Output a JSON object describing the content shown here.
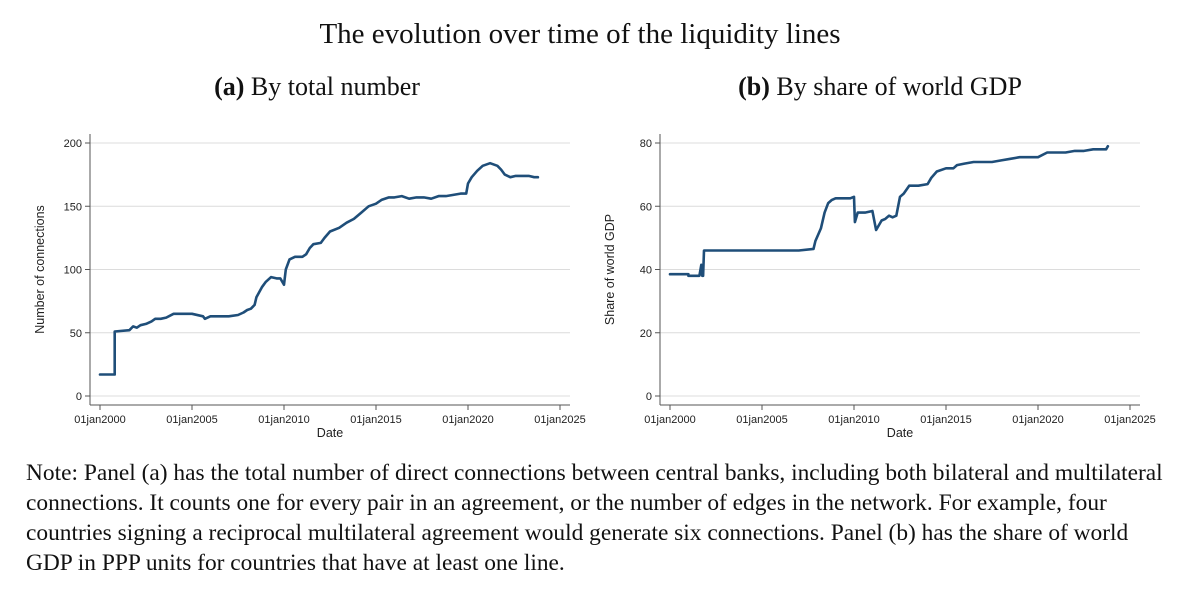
{
  "title": "The evolution over time of the liquidity lines",
  "panels": [
    {
      "tag": "(a)",
      "label": "By total number"
    },
    {
      "tag": "(b)",
      "label": "By share of world GDP"
    }
  ],
  "note": "Note: Panel (a) has the total number of direct connections between central banks, including both bilateral and multilateral connections. It counts one for every pair in an agreement, or the number of edges in the network. For example, four countries signing a reciprocal multilateral agreement would generate six connections. Panel (b) has the share of world GDP in PPP units for countries that have at least one line.",
  "colors": {
    "line": "#1f4e79",
    "axis": "#555555",
    "grid": "#dcdcdc"
  },
  "chart_data": [
    {
      "type": "line",
      "title": "By total number",
      "xlabel": "Date",
      "ylabel": "Number of connections",
      "xlim": [
        2000.0,
        2025.0
      ],
      "ylim": [
        0,
        200
      ],
      "xticks": [
        {
          "value": 2000,
          "label": "01jan2000"
        },
        {
          "value": 2005,
          "label": "01jan2005"
        },
        {
          "value": 2010,
          "label": "01jan2010"
        },
        {
          "value": 2015,
          "label": "01jan2015"
        },
        {
          "value": 2020,
          "label": "01jan2020"
        },
        {
          "value": 2025,
          "label": "01jan2025"
        }
      ],
      "yticks": [
        0,
        50,
        100,
        150,
        200
      ],
      "grid": "horizontal",
      "series": [
        {
          "x": [
            2000.0,
            2000.8,
            2000.8,
            2001.6,
            2001.8,
            2002.0,
            2002.2,
            2002.5,
            2002.8,
            2003.0,
            2003.3,
            2003.6,
            2004.0,
            2004.5,
            2005.0,
            2005.6,
            2005.7,
            2006.0,
            2006.5,
            2007.0,
            2007.5,
            2007.8,
            2008.0,
            2008.2,
            2008.4,
            2008.5,
            2008.8,
            2009.0,
            2009.3,
            2009.6,
            2009.7,
            2009.8,
            2010.0,
            2010.1,
            2010.3,
            2010.6,
            2011.0,
            2011.2,
            2011.4,
            2011.6,
            2012.0,
            2012.2,
            2012.5,
            2013.0,
            2013.4,
            2013.8,
            2014.2,
            2014.6,
            2015.0,
            2015.3,
            2015.7,
            2016.0,
            2016.4,
            2016.8,
            2017.2,
            2017.6,
            2018.0,
            2018.4,
            2018.8,
            2019.2,
            2019.6,
            2019.9,
            2020.0,
            2020.2,
            2020.5,
            2020.8,
            2021.2,
            2021.6,
            2021.8,
            2022.0,
            2022.3,
            2022.6,
            2023.0,
            2023.3,
            2023.6,
            2023.8
          ],
          "y": [
            17,
            17,
            51,
            52,
            55,
            54,
            56,
            57,
            59,
            61,
            61,
            62,
            65,
            65,
            65,
            63,
            61,
            63,
            63,
            63,
            64,
            66,
            68,
            69,
            72,
            78,
            86,
            90,
            94,
            93,
            93,
            93,
            88,
            100,
            108,
            110,
            110,
            112,
            117,
            120,
            121,
            125,
            130,
            133,
            137,
            140,
            145,
            150,
            152,
            155,
            157,
            157,
            158,
            156,
            157,
            157,
            156,
            158,
            158,
            159,
            160,
            160,
            168,
            173,
            178,
            182,
            184,
            182,
            179,
            175,
            173,
            174,
            174,
            174,
            173,
            173
          ]
        }
      ]
    },
    {
      "type": "line",
      "title": "By share of world GDP",
      "xlabel": "Date",
      "ylabel": "Share of world GDP",
      "xlim": [
        2000.0,
        2025.0
      ],
      "ylim": [
        0,
        80
      ],
      "xticks": [
        {
          "value": 2000,
          "label": "01jan2000"
        },
        {
          "value": 2005,
          "label": "01jan2005"
        },
        {
          "value": 2010,
          "label": "01jan2010"
        },
        {
          "value": 2015,
          "label": "01jan2015"
        },
        {
          "value": 2020,
          "label": "01jan2020"
        },
        {
          "value": 2025,
          "label": "01jan2025"
        }
      ],
      "yticks": [
        0,
        20,
        40,
        60,
        80
      ],
      "grid": "horizontal",
      "series": [
        {
          "x": [
            2000.0,
            2001.0,
            2001.0,
            2001.6,
            2001.7,
            2001.75,
            2001.8,
            2001.85,
            2002.0,
            2005.0,
            2007.0,
            2007.8,
            2007.9,
            2008.2,
            2008.4,
            2008.6,
            2008.8,
            2009.0,
            2009.3,
            2009.8,
            2010.0,
            2010.05,
            2010.2,
            2010.6,
            2011.0,
            2011.2,
            2011.5,
            2011.7,
            2011.9,
            2012.1,
            2012.3,
            2012.5,
            2012.7,
            2013.0,
            2013.5,
            2014.0,
            2014.2,
            2014.5,
            2015.0,
            2015.4,
            2015.6,
            2016.0,
            2016.5,
            2017.0,
            2017.5,
            2018.0,
            2018.5,
            2019.0,
            2019.5,
            2020.0,
            2020.5,
            2021.0,
            2021.5,
            2022.0,
            2022.5,
            2023.0,
            2023.5,
            2023.7,
            2023.8
          ],
          "y": [
            38.5,
            38.5,
            38,
            38,
            41.5,
            38,
            38,
            46,
            46,
            46,
            46,
            46.5,
            49,
            53,
            58,
            61,
            62,
            62.5,
            62.5,
            62.5,
            63,
            55,
            58,
            58,
            58.5,
            52.5,
            55.5,
            56,
            57,
            56.5,
            57,
            63,
            64,
            66.5,
            66.5,
            67,
            69,
            71,
            72,
            72,
            73,
            73.5,
            74,
            74,
            74,
            74.5,
            75,
            75.5,
            75.5,
            75.5,
            77,
            77,
            77,
            77.5,
            77.5,
            78,
            78,
            78,
            79
          ]
        }
      ]
    }
  ]
}
